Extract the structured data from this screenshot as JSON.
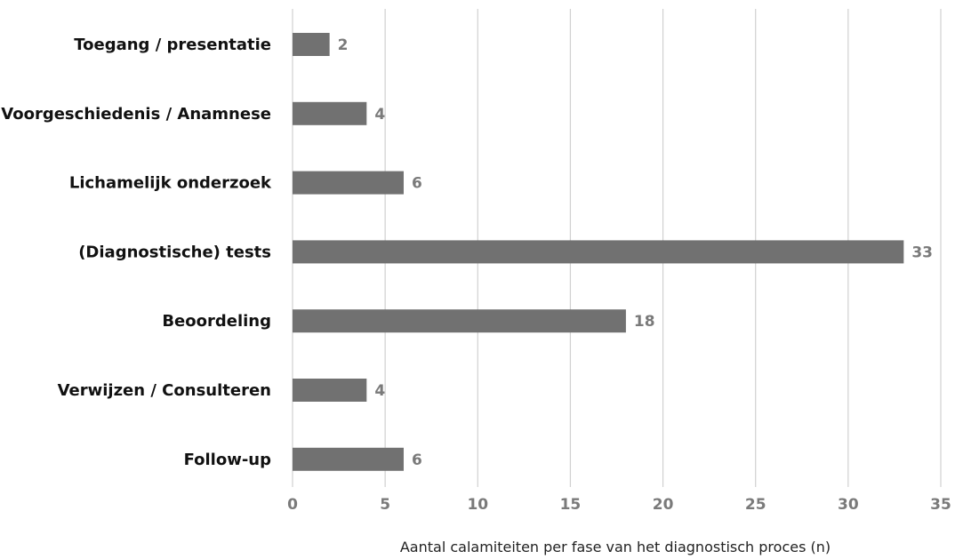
{
  "chart_data": {
    "type": "bar",
    "orientation": "horizontal",
    "categories": [
      "Toegang / presentatie",
      "Voorgeschiedenis / Anamnese",
      "Lichamelijk onderzoek",
      "(Diagnostische) tests",
      "Beoordeling",
      "Verwijzen / Consulteren",
      "Follow-up"
    ],
    "values": [
      2,
      4,
      6,
      33,
      18,
      4,
      6
    ],
    "value_labels": [
      "2",
      "4",
      "6",
      "33",
      "18",
      "4",
      "6"
    ],
    "xlabel": "Aantal calamiteiten per fase van het diagnostisch proces (n)",
    "ylabel": "",
    "xlim": [
      0,
      35
    ],
    "xticks": [
      "0",
      "5",
      "10",
      "15",
      "20",
      "25",
      "30",
      "35"
    ],
    "xtick_values": [
      0,
      5,
      10,
      15,
      20,
      25,
      30,
      35
    ],
    "grid": true,
    "legend": "none",
    "colors": {
      "bar": "#717171",
      "grid": "#d0d0d0",
      "value_label": "#7a7a7a",
      "category_label": "#111111"
    }
  }
}
